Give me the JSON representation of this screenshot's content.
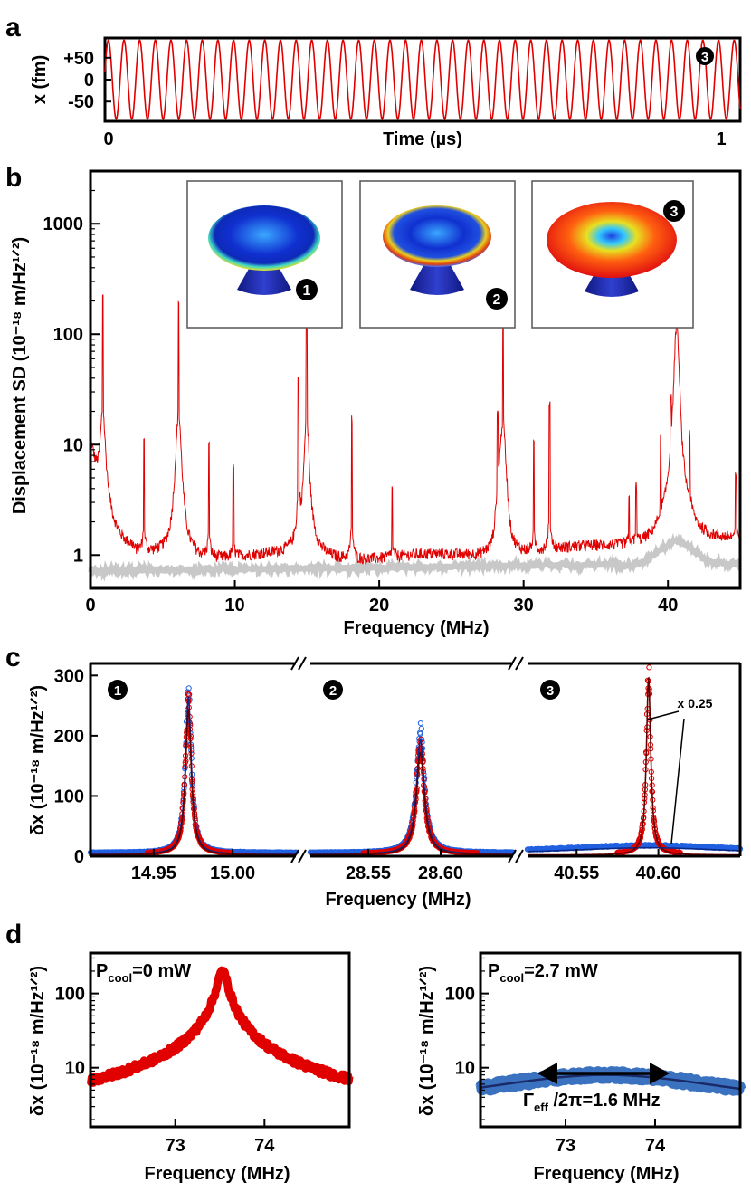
{
  "panels": {
    "a": {
      "letter": "a",
      "chart_data": {
        "type": "line",
        "title": "",
        "xlabel": "Time (µs)",
        "ylabel": "x (fm)",
        "xlim": [
          0,
          1
        ],
        "ylim": [
          -95,
          95
        ],
        "xticks": [
          0,
          1
        ],
        "xtick_labels": [
          "0",
          "1"
        ],
        "yticks": [
          50,
          0,
          -50
        ],
        "ytick_labels": [
          "+50",
          "0",
          "-50"
        ],
        "series": [
          {
            "name": "mode 3 time trace",
            "amplitude_fm": 90,
            "cycles": 40.6,
            "color": "#e00000"
          }
        ],
        "marker": "3"
      }
    },
    "b": {
      "letter": "b",
      "chart_data": {
        "type": "line",
        "yscale": "log",
        "xlabel": "Frequency (MHz)",
        "ylabel": "Displacement SD (10⁻¹⁸ m/Hz¹ᐟ²)",
        "xlim": [
          0,
          45
        ],
        "ylim": [
          0.5,
          3000
        ],
        "xticks": [
          0,
          10,
          20,
          30,
          40
        ],
        "yticks": [
          1,
          10,
          100,
          1000
        ],
        "ytick_labels": [
          "1",
          "10",
          "100",
          "1000"
        ],
        "series": [
          {
            "name": "measured",
            "color": "#e00000",
            "baseline": 1.2
          },
          {
            "name": "background",
            "color": "#c8c8c8",
            "baseline": 0.8
          }
        ],
        "peaks": [
          {
            "f": 0.85,
            "h": 230
          },
          {
            "f": 3.7,
            "h": 12
          },
          {
            "f": 6.1,
            "h": 200
          },
          {
            "f": 8.2,
            "h": 11
          },
          {
            "f": 9.9,
            "h": 6
          },
          {
            "f": 14.4,
            "h": 38
          },
          {
            "f": 14.97,
            "h": 165
          },
          {
            "f": 18.1,
            "h": 17
          },
          {
            "f": 20.9,
            "h": 4
          },
          {
            "f": 28.2,
            "h": 16
          },
          {
            "f": 28.58,
            "h": 135
          },
          {
            "f": 30.7,
            "h": 10
          },
          {
            "f": 31.8,
            "h": 22
          },
          {
            "f": 37.3,
            "h": 3
          },
          {
            "f": 37.8,
            "h": 4
          },
          {
            "f": 39.5,
            "h": 10
          },
          {
            "f": 40.2,
            "h": 20
          },
          {
            "f": 40.6,
            "h": 900
          },
          {
            "f": 41.5,
            "h": 13
          },
          {
            "f": 44.7,
            "h": 5
          }
        ],
        "insets": [
          "1",
          "2",
          "3"
        ],
        "marker": "3"
      }
    },
    "c": {
      "letter": "c",
      "chart_data": {
        "type": "scatter",
        "xlabel": "Frequency (MHz)",
        "ylabel": "δx (10⁻¹⁸ m/Hz¹ᐟ²)",
        "ylim": [
          0,
          320
        ],
        "yticks": [
          0,
          100,
          200,
          300
        ],
        "segments": [
          {
            "label": "1",
            "xlim": [
              14.91,
              15.04
            ],
            "xticks": [
              14.95,
              15.0
            ],
            "xtick_labels": [
              "14.95",
              "15.00"
            ],
            "center": 14.972,
            "width": 0.0022,
            "red_peak": 260,
            "blue_peak": 272,
            "red_fit": 240,
            "blue_fit": 260
          },
          {
            "label": "2",
            "xlim": [
              28.51,
              28.65
            ],
            "xticks": [
              28.55,
              28.6
            ],
            "xtick_labels": [
              "28.55",
              "28.60"
            ],
            "center": 28.586,
            "width": 0.0033,
            "red_peak": 180,
            "blue_peak": 205,
            "red_fit": 170,
            "blue_fit": 190
          },
          {
            "label": "3",
            "xlim": [
              40.52,
              40.65
            ],
            "xticks": [
              40.55,
              40.6
            ],
            "xtick_labels": [
              "40.55",
              "40.60"
            ],
            "center": 40.594,
            "width": 0.0016,
            "red_peak": 295,
            "blue_peak": 12,
            "red_fit": 295,
            "blue_fit": 11
          }
        ],
        "annotation": "x 0.25",
        "colors": {
          "red": "#e00000",
          "blue": "#2060e0"
        }
      }
    },
    "d": {
      "letter": "d",
      "chart_data": [
        {
          "type": "line",
          "yscale": "log",
          "xlabel": "Frequency (MHz)",
          "ylabel": "δx (10⁻¹⁸ m/Hz¹ᐟ²)",
          "xlim": [
            72.05,
            74.95
          ],
          "ylim": [
            1.6,
            350
          ],
          "xticks": [
            73,
            74
          ],
          "yticks": [
            10,
            100
          ],
          "label_main": "P",
          "label_sub": "cool",
          "label_rest": "=0 mW",
          "center": 73.53,
          "gamma": 0.05,
          "peak": 200,
          "color": "#e00000"
        },
        {
          "type": "line",
          "yscale": "log",
          "xlabel": "Frequency (MHz)",
          "ylabel": "δx (10⁻¹⁸ m/Hz¹ᐟ²)",
          "xlim": [
            72.05,
            74.95
          ],
          "ylim": [
            1.6,
            350
          ],
          "xticks": [
            73,
            74
          ],
          "yticks": [
            10,
            100
          ],
          "label_main": "P",
          "label_sub": "cool",
          "label_rest": "=2.7 mW",
          "center": 73.45,
          "gamma": 1.6,
          "peak": 8,
          "color": "#3a72c0",
          "fit_color": "#1a2a66",
          "arrow_label_main": "Γ",
          "arrow_label_sub": "eff",
          "arrow_label_rest": " /2π=1.6 MHz"
        }
      ]
    }
  }
}
